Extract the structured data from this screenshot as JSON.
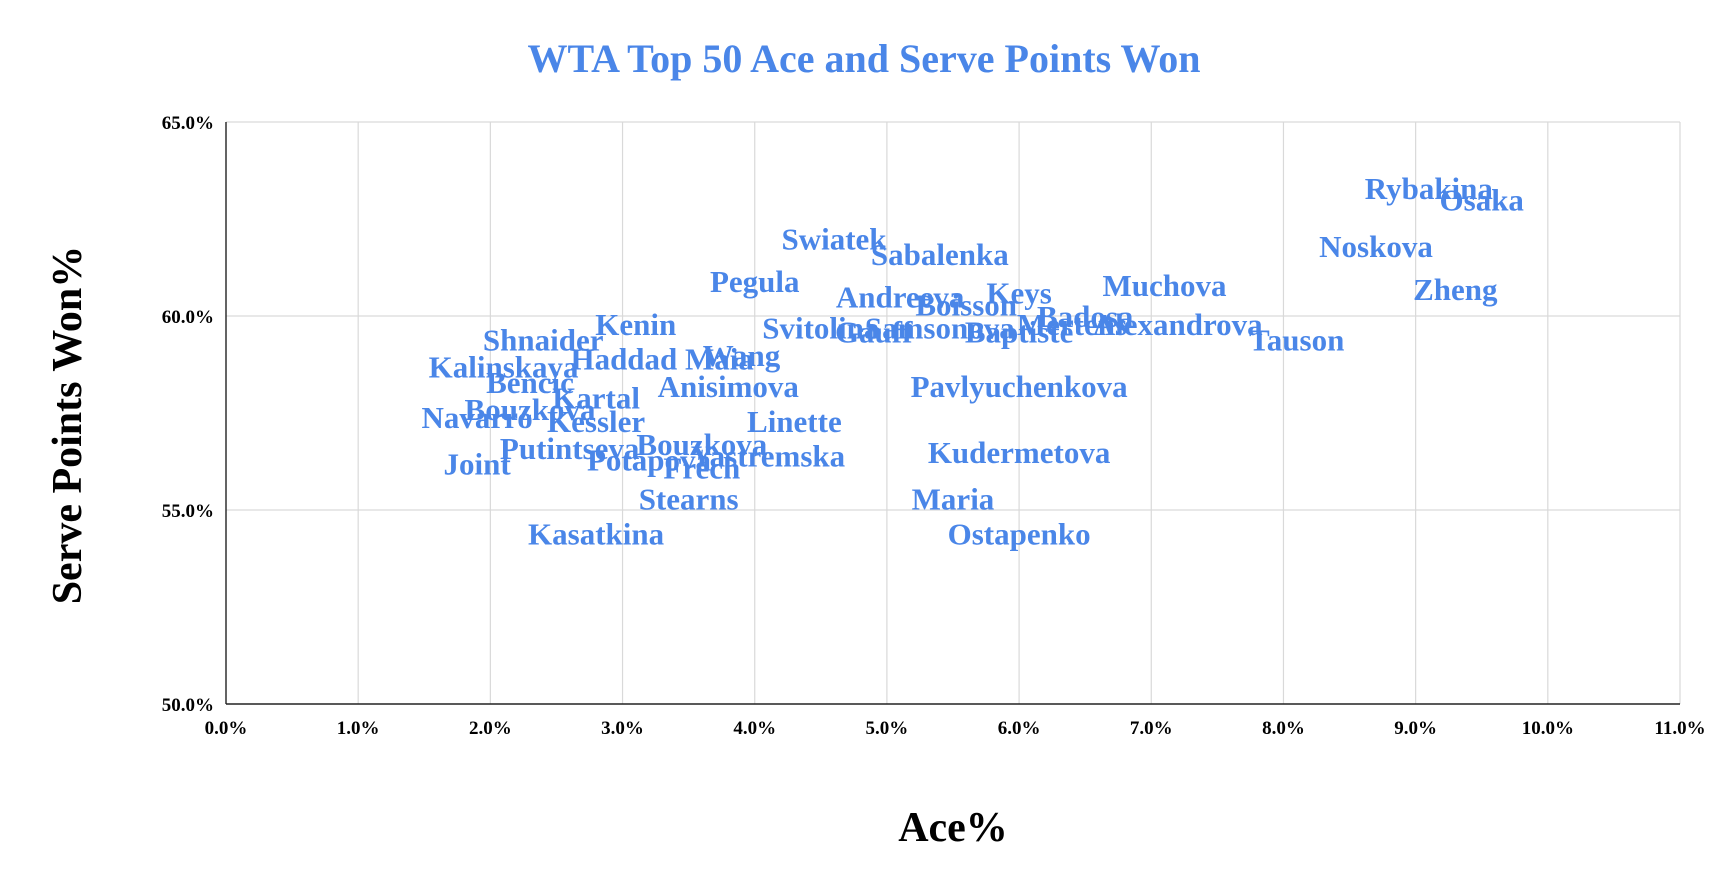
{
  "chart_data": {
    "type": "scatter",
    "title": "WTA Top 50 Ace and Serve Points Won",
    "xlabel": "Ace%",
    "ylabel": "Serve Points Won%",
    "xlim": [
      0.0,
      11.0
    ],
    "ylim": [
      50.0,
      65.0
    ],
    "x_ticks": [
      "0.0%",
      "1.0%",
      "2.0%",
      "3.0%",
      "4.0%",
      "5.0%",
      "6.0%",
      "7.0%",
      "8.0%",
      "9.0%",
      "10.0%",
      "11.0%"
    ],
    "y_ticks": [
      "50.0%",
      "55.0%",
      "60.0%",
      "65.0%"
    ],
    "grid": true,
    "legend": "none",
    "color": "#4a86e8",
    "points": [
      {
        "label": "Rybakina",
        "x": 9.1,
        "y": 63.3
      },
      {
        "label": "Osaka",
        "x": 9.5,
        "y": 63.0
      },
      {
        "label": "Noskova",
        "x": 8.7,
        "y": 61.8
      },
      {
        "label": "Zheng",
        "x": 9.3,
        "y": 60.7
      },
      {
        "label": "Muchova",
        "x": 7.1,
        "y": 60.8
      },
      {
        "label": "Tauson",
        "x": 8.1,
        "y": 59.4
      },
      {
        "label": "Mertens",
        "x": 6.4,
        "y": 59.8
      },
      {
        "label": "Alexandrova",
        "x": 7.2,
        "y": 59.8
      },
      {
        "label": "Badosa",
        "x": 6.5,
        "y": 60.0
      },
      {
        "label": "Keys",
        "x": 6.0,
        "y": 60.6
      },
      {
        "label": "Boisson",
        "x": 5.6,
        "y": 60.3
      },
      {
        "label": "Andreeva",
        "x": 5.1,
        "y": 60.5
      },
      {
        "label": "Swiatek",
        "x": 4.6,
        "y": 62.0
      },
      {
        "label": "Sabalenka",
        "x": 5.4,
        "y": 61.6
      },
      {
        "label": "Pegula",
        "x": 4.0,
        "y": 60.9
      },
      {
        "label": "Gauff",
        "x": 4.9,
        "y": 59.6
      },
      {
        "label": "Baptiste",
        "x": 6.0,
        "y": 59.6
      },
      {
        "label": "Svitolina",
        "x": 4.5,
        "y": 59.7
      },
      {
        "label": "Samsonova",
        "x": 5.4,
        "y": 59.7
      },
      {
        "label": "Kenin",
        "x": 3.1,
        "y": 59.8
      },
      {
        "label": "Shnaider",
        "x": 2.4,
        "y": 59.4
      },
      {
        "label": "Haddad Maia",
        "x": 3.3,
        "y": 58.9
      },
      {
        "label": "Wang",
        "x": 3.9,
        "y": 59.0
      },
      {
        "label": "Kalinskaya",
        "x": 2.1,
        "y": 58.7
      },
      {
        "label": "Bencic",
        "x": 2.3,
        "y": 58.3
      },
      {
        "label": "Kartal",
        "x": 2.8,
        "y": 57.9
      },
      {
        "label": "Anisimova",
        "x": 3.8,
        "y": 58.2
      },
      {
        "label": "Pavlyuchenkova",
        "x": 6.0,
        "y": 58.2
      },
      {
        "label": "Navarro",
        "x": 1.9,
        "y": 57.4
      },
      {
        "label": "Bouzkova",
        "x": 2.3,
        "y": 57.6
      },
      {
        "label": "Kessler",
        "x": 2.8,
        "y": 57.3
      },
      {
        "label": "Linette",
        "x": 4.3,
        "y": 57.3
      },
      {
        "label": "Bouzkova",
        "x": 3.6,
        "y": 56.7
      },
      {
        "label": "Putintseva",
        "x": 2.6,
        "y": 56.6
      },
      {
        "label": "Potapova",
        "x": 3.2,
        "y": 56.3
      },
      {
        "label": "Frech",
        "x": 3.6,
        "y": 56.1
      },
      {
        "label": "Yastremska",
        "x": 4.1,
        "y": 56.4
      },
      {
        "label": "Kudermetova",
        "x": 6.0,
        "y": 56.5
      },
      {
        "label": "Joint",
        "x": 1.9,
        "y": 56.2
      },
      {
        "label": "Stearns",
        "x": 3.5,
        "y": 55.3
      },
      {
        "label": "Maria",
        "x": 5.5,
        "y": 55.3
      },
      {
        "label": "Kasatkina",
        "x": 2.8,
        "y": 54.4
      },
      {
        "label": "Ostapenko",
        "x": 6.0,
        "y": 54.4
      }
    ]
  }
}
